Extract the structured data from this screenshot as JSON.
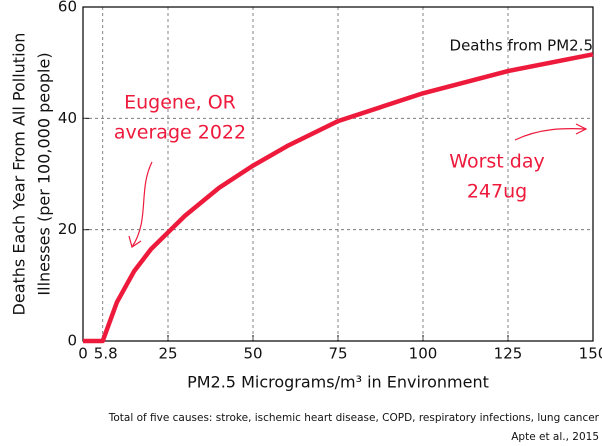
{
  "chart_data": {
    "type": "line",
    "x_label": "PM2.5 Micrograms/m³ in Environment",
    "y_label": [
      "Deaths Each Year From All Pollution",
      "Illnesses (per 100,000 people)"
    ],
    "x": [
      0,
      5.8,
      10,
      15,
      20,
      25,
      30,
      40,
      50,
      60,
      75,
      90,
      100,
      125,
      150
    ],
    "series": [
      {
        "name": "Deaths from PM2.5",
        "color": "#ee1a3c",
        "values": [
          0,
          0,
          7,
          12.5,
          16.5,
          19.5,
          22.5,
          27.5,
          31.5,
          35,
          39.5,
          42.5,
          44.5,
          48.5,
          51.5
        ]
      }
    ],
    "xlim": [
      0,
      150
    ],
    "xticks": [
      0,
      5.8,
      25,
      50,
      75,
      100,
      125,
      150
    ],
    "ylim": [
      0,
      60
    ],
    "yticks": [
      0,
      20,
      40,
      60
    ],
    "grid": true,
    "annotations": [
      [
        "Eugene, OR",
        "average 2022"
      ],
      [
        "Worst day",
        "247ug"
      ]
    ],
    "footnotes": [
      "Total of five causes: stroke, ischemic heart disease, COPD, respiratory infections, lung cancer",
      "Apte et al., 2015"
    ]
  }
}
